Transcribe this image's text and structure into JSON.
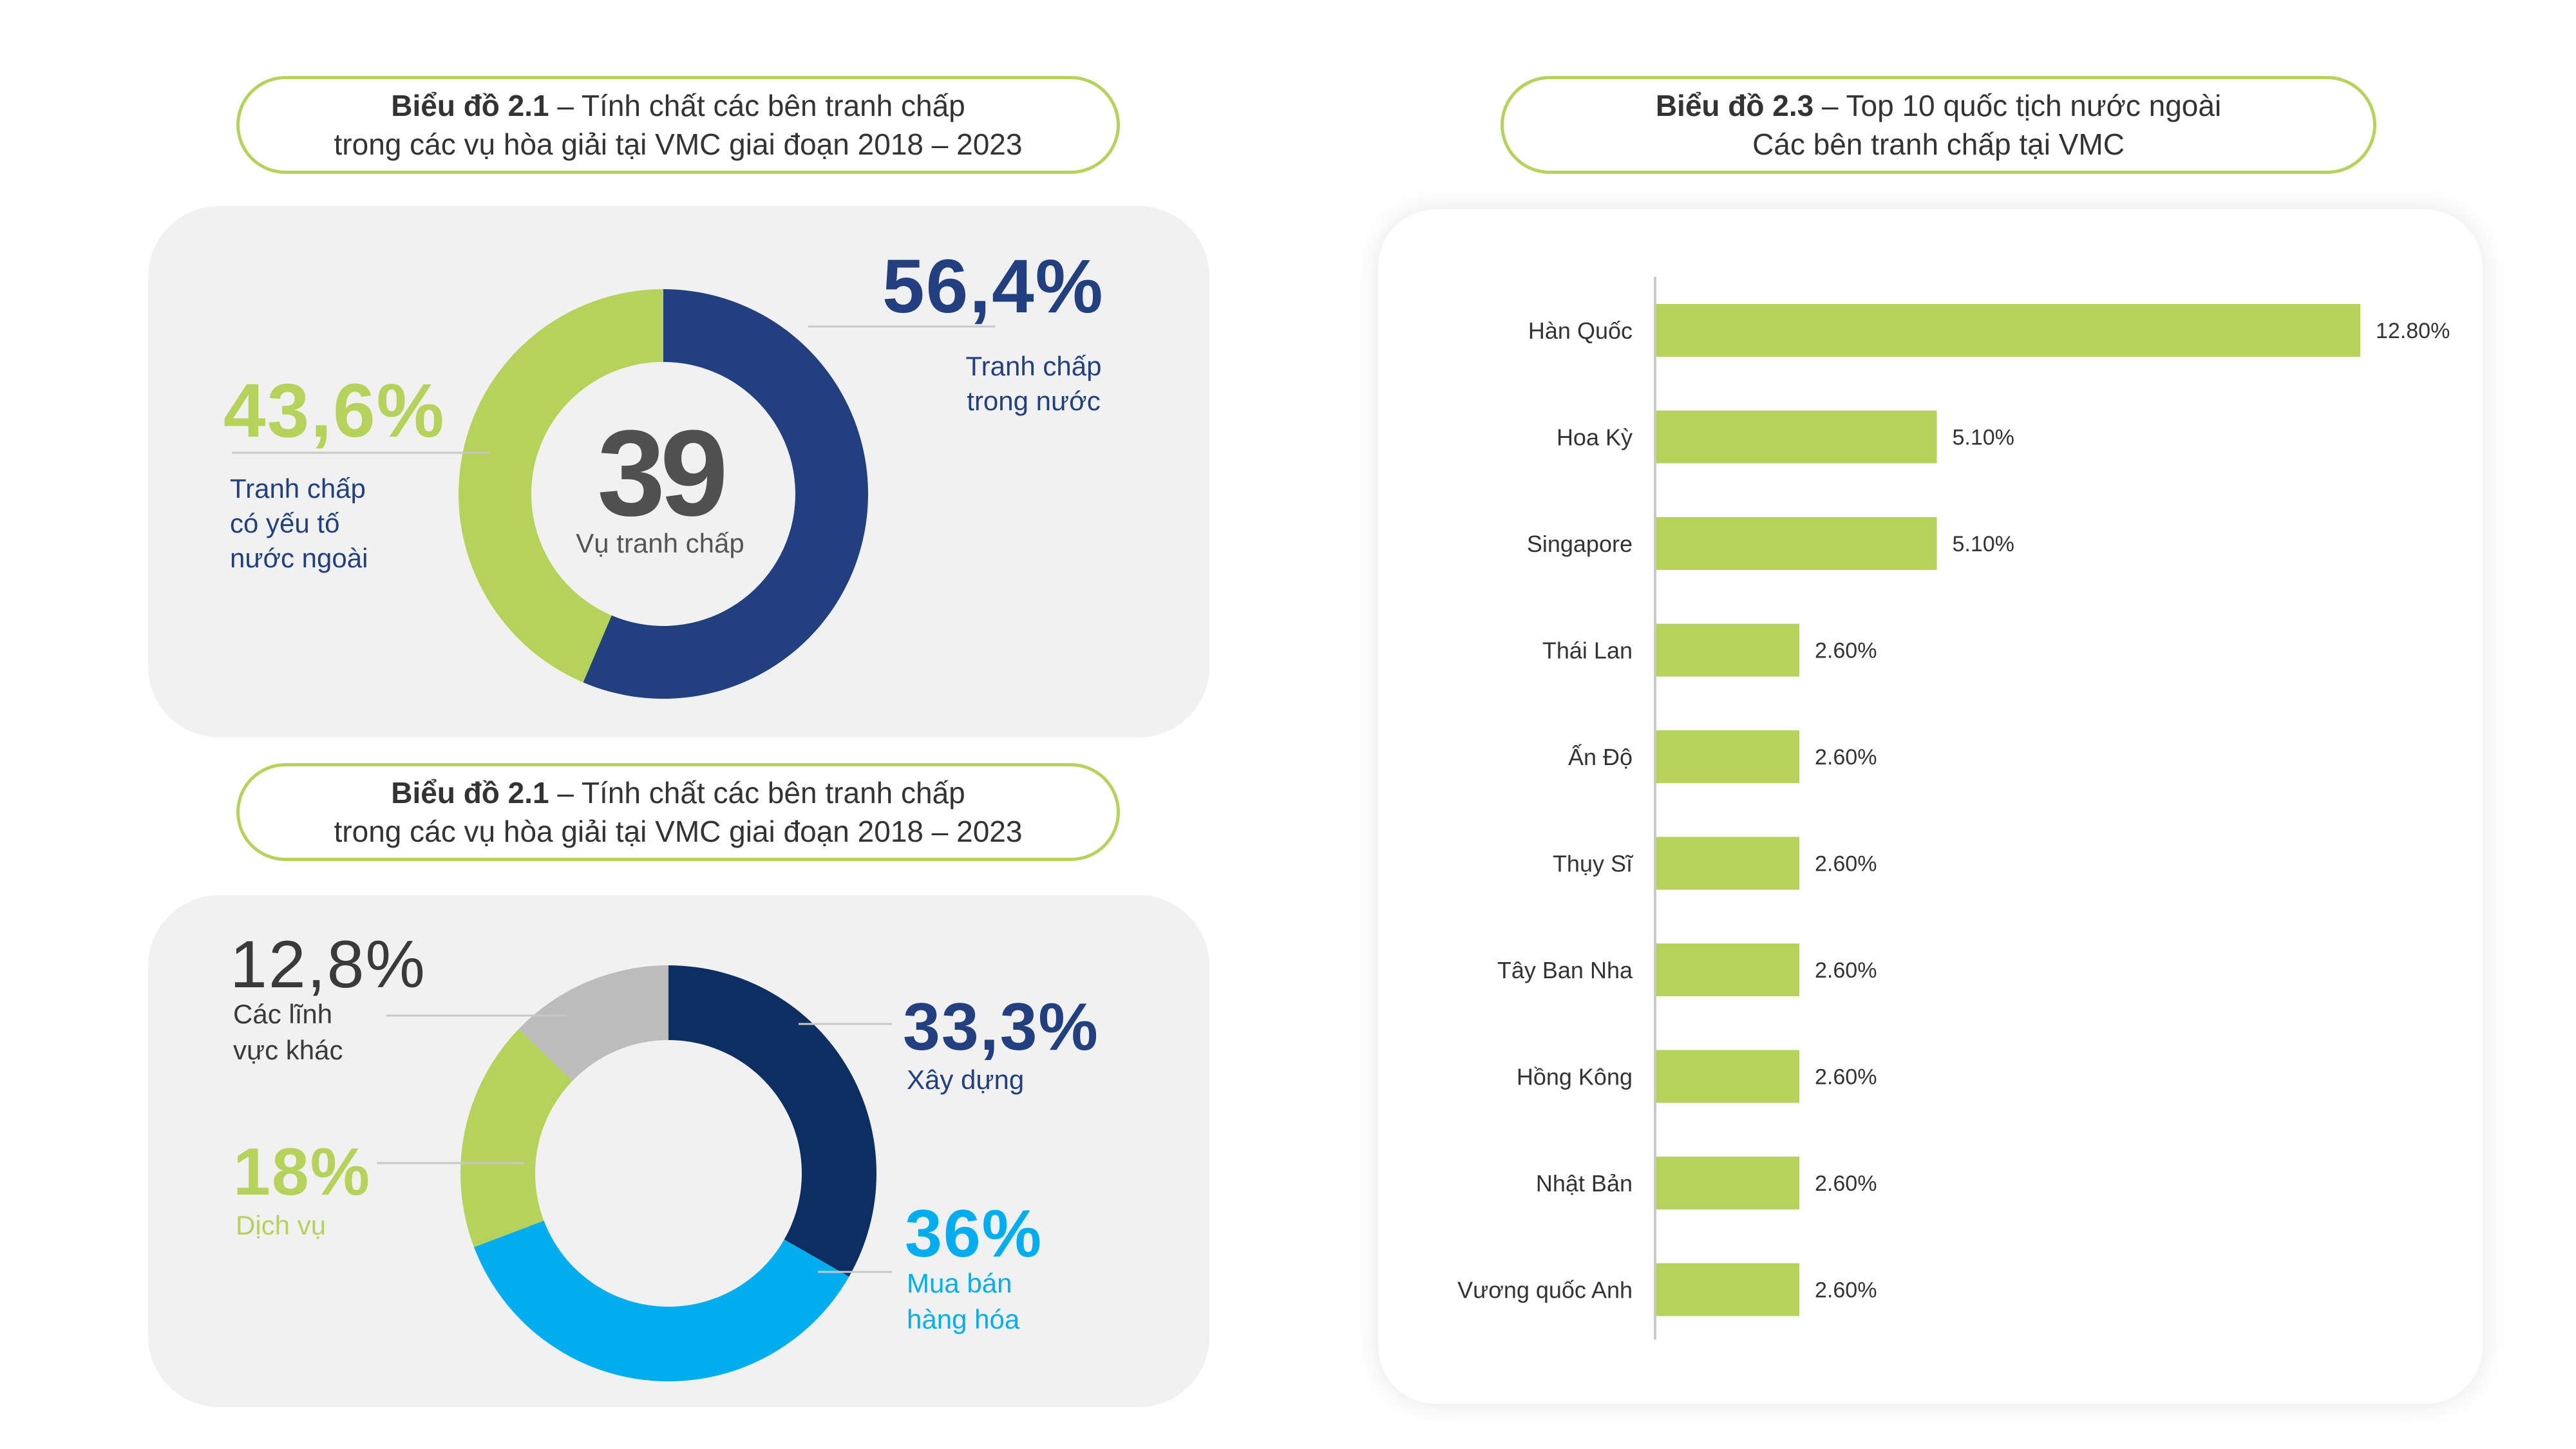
{
  "chart1": {
    "title_bold": "Biểu đồ 2.1",
    "title_rest": " – Tính chất các bên tranh chấp",
    "title_line2": "trong các vụ hòa giải tại VMC giai đoạn 2018 – 2023",
    "center_value": "39",
    "center_label": "Vụ tranh chấp",
    "domestic_pct": "56,4%",
    "domestic_label_1": "Tranh chấp",
    "domestic_label_2": "trong nước",
    "foreign_pct": "43,6%",
    "foreign_label_1": "Tranh chấp",
    "foreign_label_2": "có yếu tố",
    "foreign_label_3": "nước ngoài"
  },
  "chart2": {
    "title_bold": "Biểu đồ 2.1",
    "title_rest": " – Tính chất các bên tranh chấp",
    "title_line2": "trong các vụ hòa giải tại VMC giai đoạn 2018 – 2023",
    "construction_pct": "33,3%",
    "construction_label": "Xây dựng",
    "trade_pct": "36%",
    "trade_label_1": "Mua bán",
    "trade_label_2": "hàng hóa",
    "service_pct": "18%",
    "service_label": "Dịch vụ",
    "other_pct": "12,8%",
    "other_label_1": "Các lĩnh",
    "other_label_2": "vực khác"
  },
  "chart3": {
    "title_bold": "Biểu đồ 2.3",
    "title_rest": " – Top 10 quốc tịch nước ngoài",
    "title_line2": "Các bên tranh chấp tại VMC"
  },
  "colors": {
    "green": "#b5d35b",
    "navy": "#22407f",
    "dark_navy": "#0d2e63",
    "cyan": "#00adef",
    "gray": "#bcbcbc"
  },
  "chart_data": [
    {
      "type": "pie",
      "title": "Biểu đồ 2.1 – Tính chất các bên tranh chấp trong các vụ hòa giải tại VMC giai đoạn 2018 – 2023",
      "categories": [
        "Tranh chấp trong nước",
        "Tranh chấp có yếu tố nước ngoài"
      ],
      "values": [
        56.4,
        43.6
      ],
      "colors": [
        "#22407f",
        "#b5d35b"
      ],
      "donut": true,
      "center_value": 39
    },
    {
      "type": "pie",
      "title": "Biểu đồ 2.1 – Tính chất các bên tranh chấp trong các vụ hòa giải tại VMC giai đoạn 2018 – 2023",
      "categories": [
        "Xây dựng",
        "Mua bán hàng hóa",
        "Dịch vụ",
        "Các lĩnh vực khác"
      ],
      "values": [
        33.3,
        36,
        18,
        12.8
      ],
      "colors": [
        "#0d2e63",
        "#00adef",
        "#b5d35b",
        "#bcbcbc"
      ],
      "donut": true
    },
    {
      "type": "bar",
      "orientation": "horizontal",
      "title": "Biểu đồ 2.3 – Top 10 quốc tịch nước ngoài Các bên tranh chấp tại VMC",
      "categories": [
        "Hàn Quốc",
        "Hoa Kỳ",
        "Singapore",
        "Thái Lan",
        "Ấn Độ",
        "Thụy Sĩ",
        "Tây Ban Nha",
        "Hồng Kông",
        "Nhật Bản",
        "Vương quốc Anh"
      ],
      "values": [
        12.8,
        5.1,
        5.1,
        2.6,
        2.6,
        2.6,
        2.6,
        2.6,
        2.6,
        2.6
      ],
      "value_labels": [
        "12.80%",
        "5.10%",
        "5.10%",
        "2.60%",
        "2.60%",
        "2.60%",
        "2.60%",
        "2.60%",
        "2.60%",
        "2.60%"
      ],
      "color": "#b5d35b",
      "xlim": [
        0,
        12.8
      ],
      "grid": false
    }
  ]
}
